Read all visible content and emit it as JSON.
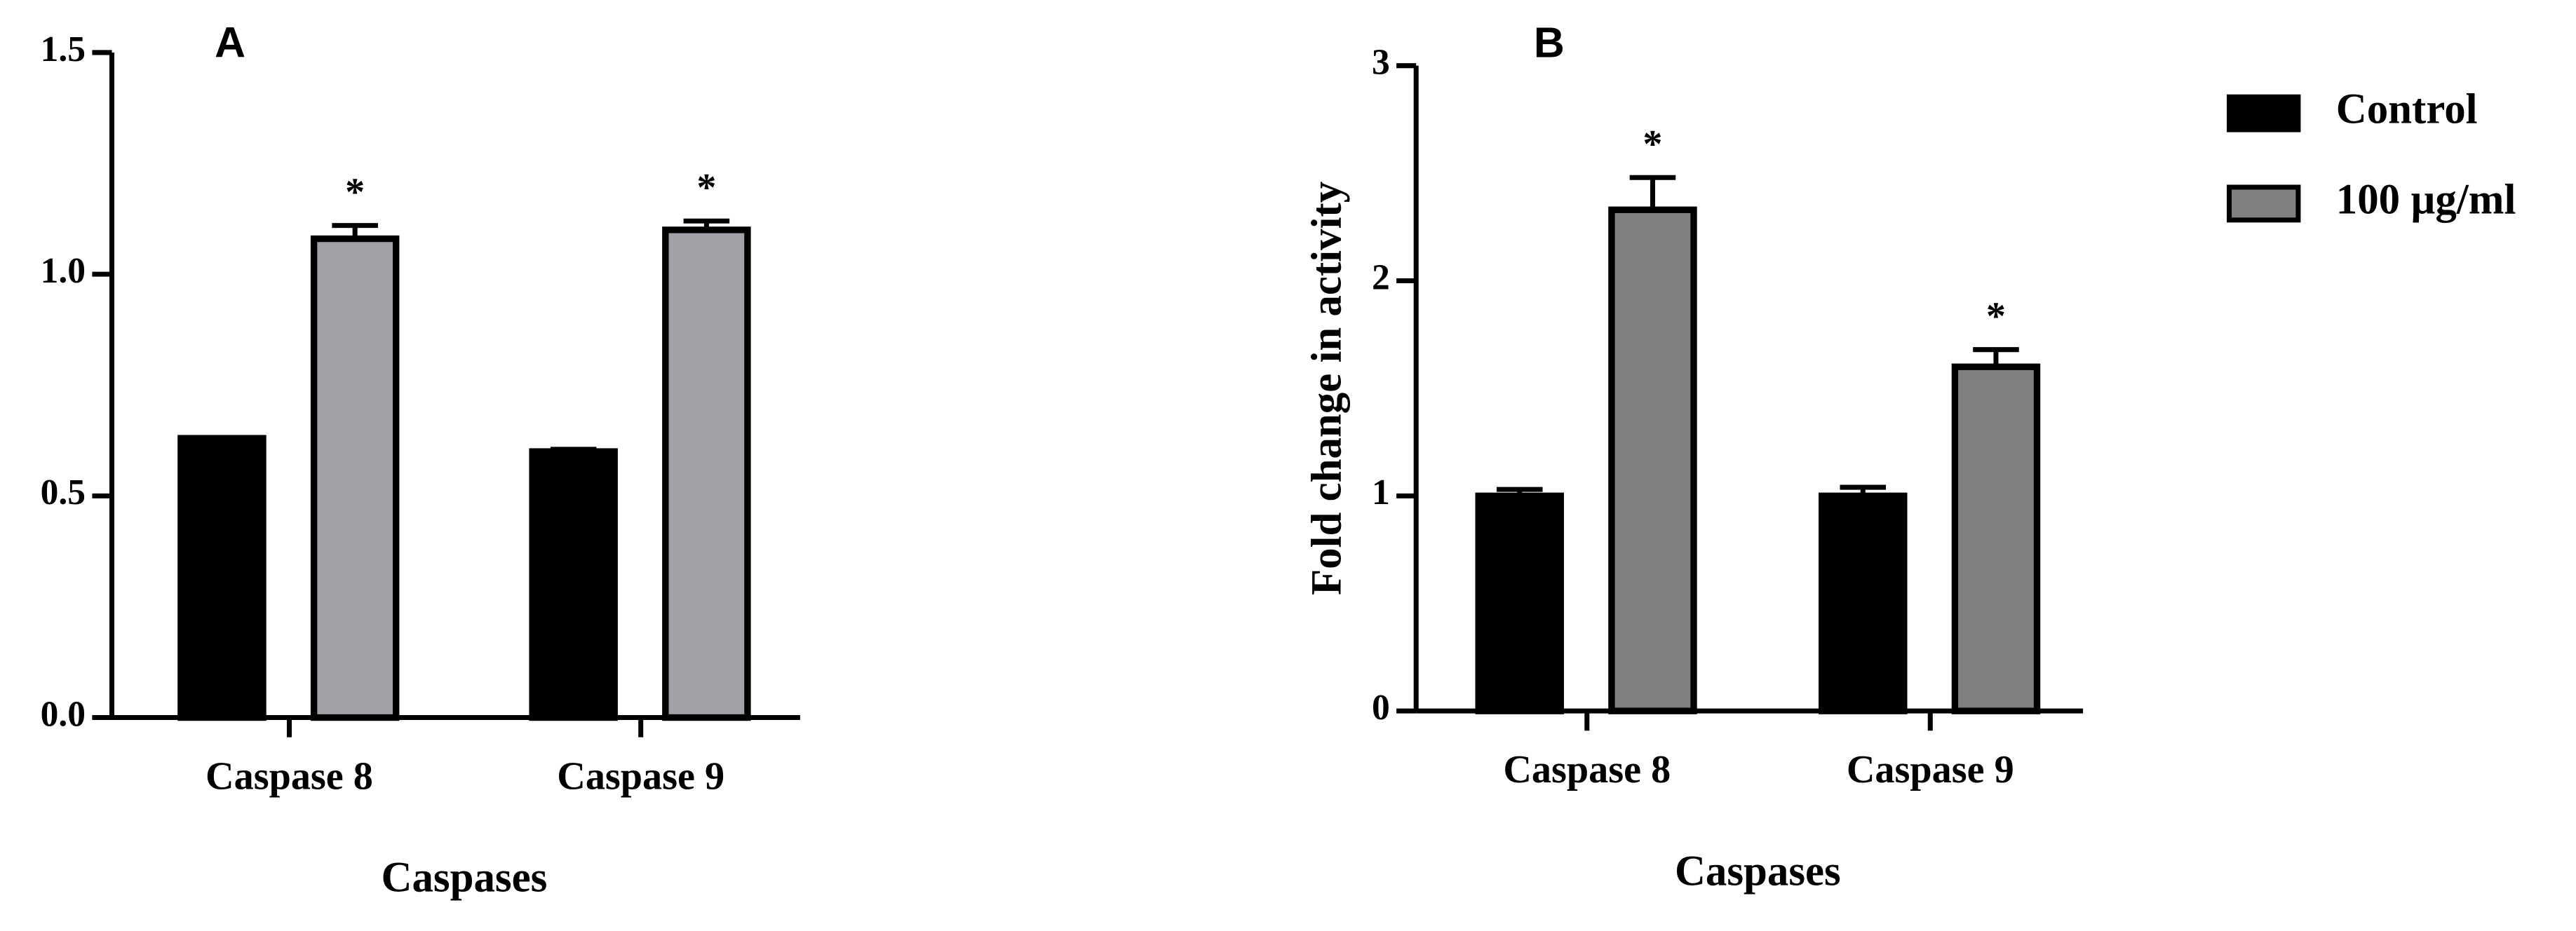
{
  "chart_data": [
    {
      "type": "bar",
      "title": "A",
      "x_label": "Caspases",
      "categories": [
        "Caspase 8",
        "Caspase 9"
      ],
      "series": [
        {
          "color": "#000000",
          "values": [
            0.63,
            0.6
          ],
          "errors": [
            0,
            0.005
          ]
        },
        {
          "color": "#a3a1a8",
          "values": [
            1.08,
            1.1
          ],
          "errors": [
            0.03,
            0.02
          ],
          "significance_labels": [
            "*",
            "*"
          ]
        }
      ],
      "ylim": [
        0,
        1.5
      ],
      "yticks": [
        {
          "value": 0,
          "label": "0.0"
        },
        0.5,
        {
          "value": 1,
          "label": "1.0"
        },
        1.5
      ]
    },
    {
      "type": "bar",
      "title": "B",
      "x_label": "Caspases",
      "y_label": "Fold change in activity",
      "categories": [
        "Caspase 8",
        "Caspase 9"
      ],
      "series": [
        {
          "name": "Control",
          "color": "#000000",
          "values": [
            1.0,
            1.0
          ],
          "errors": [
            0.03,
            0.04
          ]
        },
        {
          "name": "100 µg/ml",
          "color": "#808080",
          "values": [
            2.33,
            1.6
          ],
          "errors": [
            0.15,
            0.08
          ],
          "significance_labels": [
            "*",
            "*"
          ]
        }
      ],
      "ylim": [
        0,
        3
      ],
      "yticks": [
        0,
        1,
        2,
        3
      ],
      "legend": "right"
    }
  ]
}
